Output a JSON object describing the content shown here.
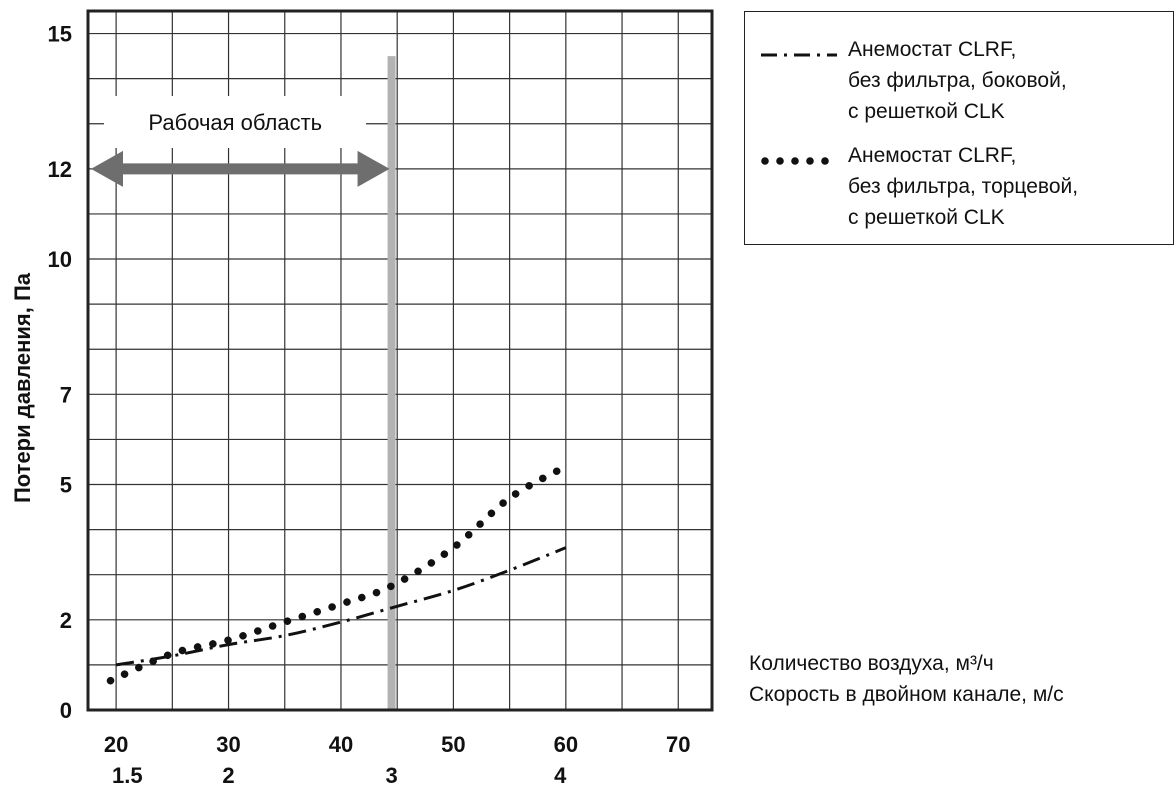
{
  "chart_data": {
    "type": "line",
    "ylabel": "Потери давления, Па",
    "x_primary_label": "Количество воздуха, м³/ч",
    "x_secondary_label": "Скорость в двойном канале, м/с",
    "xlim": [
      17.5,
      73
    ],
    "ylim": [
      0,
      15.5
    ],
    "x_ticks": [
      "20",
      "30",
      "40",
      "50",
      "60",
      "70"
    ],
    "x_tick_values": [
      20,
      30,
      40,
      50,
      60,
      70
    ],
    "x_secondary_ticks": [
      "1.5",
      "2",
      "3",
      "4"
    ],
    "x_secondary_positions": [
      21,
      30,
      44.5,
      59.5
    ],
    "y_ticks": [
      "0",
      "2",
      "5",
      "7",
      "10",
      "12",
      "15"
    ],
    "y_tick_values": [
      0,
      2,
      5,
      7,
      10,
      12,
      15
    ],
    "grid": true,
    "grid_x": [
      20,
      25,
      30,
      35,
      40,
      45,
      50,
      55,
      60,
      65,
      70
    ],
    "grid_y": [
      1,
      2,
      3,
      4,
      5,
      6,
      7,
      8,
      9,
      10,
      11,
      12,
      13,
      14,
      15
    ],
    "working_area": {
      "label": "Рабочая область",
      "x_from": 17.5,
      "x_to": 44.5,
      "y": 12
    },
    "series": [
      {
        "name": "Анемостат CLRF, без фильтра, боковой, с решеткой CLK",
        "style": "dash-dot",
        "color": "#111111",
        "x": [
          20,
          25,
          30,
          35,
          40,
          45,
          50,
          55,
          60
        ],
        "y": [
          1.0,
          1.2,
          1.45,
          1.65,
          1.95,
          2.3,
          2.65,
          3.1,
          3.6
        ]
      },
      {
        "name": "Анемостат CLRF, без фильтра, торцевой, с решеткой CLK",
        "style": "dotted",
        "color": "#111111",
        "x": [
          19.5,
          25,
          30,
          35,
          40,
          44.5,
          50,
          55,
          60
        ],
        "y": [
          0.65,
          1.25,
          1.55,
          1.95,
          2.35,
          2.75,
          3.6,
          4.7,
          5.4
        ]
      }
    ]
  },
  "legend": {
    "entries": [
      {
        "style": "dash-dot",
        "lines": [
          "Анемостат CLRF,",
          "без фильтра, боковой,",
          "с решеткой CLK"
        ]
      },
      {
        "style": "dotted",
        "lines": [
          "Анемостат CLRF,",
          "без фильтра, торцевой,",
          "с решеткой CLK"
        ]
      }
    ]
  },
  "colors": {
    "axis": "#222222",
    "grid": "#333333",
    "working_arrow": "#6e6e6e",
    "vertical_marker": "#b3b3b3",
    "series": "#111111"
  }
}
